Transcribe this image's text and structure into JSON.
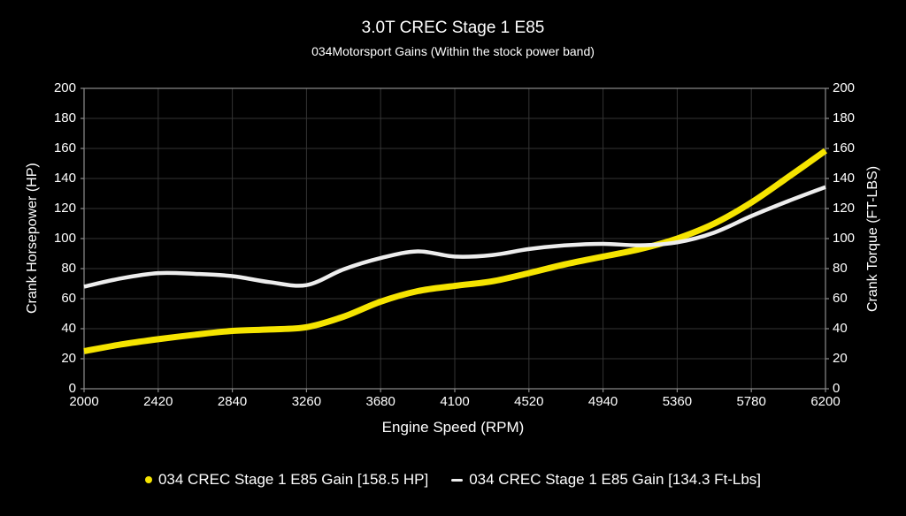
{
  "chart_data": {
    "type": "line",
    "title": "3.0T CREC Stage 1 E85",
    "subtitle": "034Motorsport Gains (Within the stock power band)",
    "xlabel": "Engine Speed (RPM)",
    "ylabel_left": "Crank Horsepower (HP)",
    "ylabel_right": "Crank Torque (FT-LBS)",
    "xlim": [
      2000,
      6200
    ],
    "ylim_left": [
      0,
      200
    ],
    "ylim_right": [
      0,
      200
    ],
    "x_ticks": [
      2000,
      2420,
      2840,
      3260,
      3680,
      4100,
      4520,
      4940,
      5360,
      5780,
      6200
    ],
    "y_ticks": [
      0,
      20,
      40,
      60,
      80,
      100,
      120,
      140,
      160,
      180,
      200
    ],
    "grid": true,
    "legend_position": "bottom-center",
    "colors": {
      "background": "#000000",
      "text": "#ffffff",
      "grid": "#343434",
      "frame": "#8c8c8c",
      "hp_line": "#f5e400",
      "torque_line": "#ededed"
    },
    "x": [
      2000,
      2210,
      2420,
      2630,
      2840,
      3050,
      3260,
      3470,
      3680,
      3890,
      4100,
      4310,
      4520,
      4730,
      4940,
      5150,
      5360,
      5570,
      5780,
      5990,
      6200
    ],
    "series": [
      {
        "name": "034 CREC Stage 1 E85 Gain [158.5 HP]",
        "axis": "left",
        "unit": "HP",
        "marker": "dot",
        "color": "#f5e400",
        "line_width": 7,
        "values": [
          25,
          29.5,
          33,
          36,
          38.5,
          39.5,
          41,
          48,
          58,
          65,
          68.5,
          71.5,
          77,
          83,
          88,
          93,
          100,
          110,
          124,
          141,
          158.5
        ]
      },
      {
        "name": "034 CREC Stage 1 E85 Gain [134.3 Ft-Lbs]",
        "axis": "right",
        "unit": "Ft-Lbs",
        "marker": "dash",
        "color": "#ededed",
        "line_width": 4.5,
        "values": [
          68,
          73.5,
          77,
          76.5,
          75,
          71,
          69,
          79.5,
          87,
          91.5,
          88,
          89,
          93,
          95.5,
          96.5,
          95.5,
          97.5,
          104,
          115,
          125,
          134.3
        ]
      }
    ]
  }
}
